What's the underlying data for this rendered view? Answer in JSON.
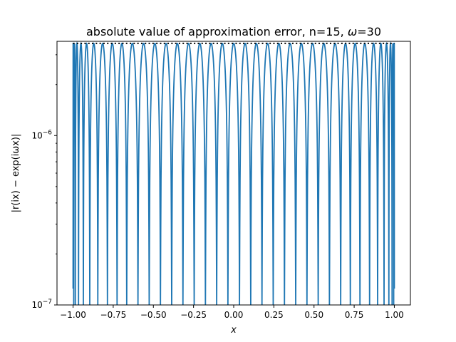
{
  "chart_data": {
    "type": "line",
    "title_prefix": "absolute value of approximation error, n=15, ",
    "title_omega": "ω",
    "title_suffix": "=30",
    "xlabel": "x",
    "ylabel": "|r(ix) − exp(iωx)|",
    "yscale": "log",
    "xlim": [
      -1.1,
      1.1
    ],
    "ylim": [
      1e-07,
      3.6e-06
    ],
    "x_ticks": [
      -1.0,
      -0.75,
      -0.5,
      -0.25,
      0.0,
      0.25,
      0.5,
      0.75,
      1.0
    ],
    "x_tick_labels": [
      "−1.00",
      "−0.75",
      "−0.50",
      "−0.25",
      "0.00",
      "0.25",
      "0.50",
      "0.75",
      "1.00"
    ],
    "y_ticks": [
      1e-07,
      1e-06
    ],
    "y_tick_labels_base": [
      "10",
      "10"
    ],
    "y_tick_labels_exp": [
      "−7",
      "−6"
    ],
    "grid": false,
    "series": [
      {
        "color": "#1f77b4",
        "style": "solid",
        "peak_value": 3.5e-06,
        "endpoint_value": 1.25e-07,
        "zero_crossings": [
          -0.996,
          -0.986,
          -0.966,
          -0.936,
          -0.896,
          -0.846,
          -0.786,
          -0.726,
          -0.666,
          -0.596,
          -0.526,
          -0.456,
          -0.386,
          -0.316,
          -0.246,
          -0.176,
          -0.106,
          -0.036,
          0.036,
          0.106,
          0.176,
          0.246,
          0.316,
          0.386,
          0.456,
          0.526,
          0.596,
          0.666,
          0.726,
          0.786,
          0.846,
          0.896,
          0.936,
          0.966,
          0.986,
          0.996
        ]
      },
      {
        "color": "#000000",
        "style": "dotted",
        "x": [
          -1.0,
          1.0
        ],
        "y": [
          3.5e-06,
          3.5e-06
        ]
      }
    ]
  }
}
